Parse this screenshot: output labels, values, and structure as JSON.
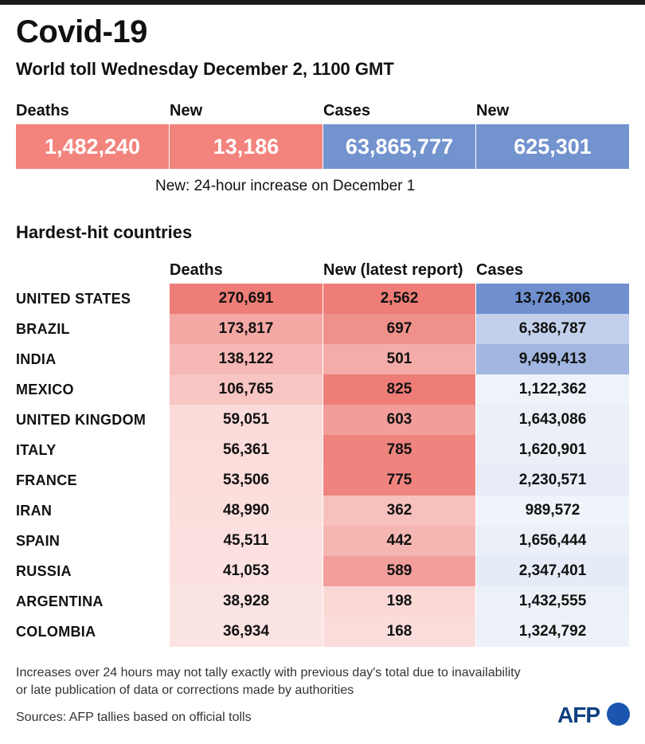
{
  "title": "Covid-19",
  "subtitle": "World toll Wednesday December 2, 1100 GMT",
  "summary": [
    {
      "label": "Deaths",
      "value": "1,482,240",
      "color": "#f2847d"
    },
    {
      "label": "New",
      "value": "13,186",
      "color": "#f2847d"
    },
    {
      "label": "Cases",
      "value": "63,865,777",
      "color": "#7393cf"
    },
    {
      "label": "New",
      "value": "625,301",
      "color": "#7393cf"
    }
  ],
  "note": "New: 24-hour increase on December 1",
  "section_title": "Hardest-hit countries",
  "colors": {
    "deaths": "#ee7d77",
    "new": "#ee7d77",
    "cases": "#6f8fcf"
  },
  "chart_data": {
    "type": "table",
    "title": "Hardest-hit countries",
    "columns": [
      "Deaths",
      "New (latest report)",
      "Cases"
    ],
    "rows": [
      {
        "country": "UNITED STATES",
        "deaths": "270,691",
        "new": "2,562",
        "cases": "13,726,306",
        "deaths_value": 270691,
        "new_value": 2562,
        "cases_value": 13726306
      },
      {
        "country": "BRAZIL",
        "deaths": "173,817",
        "new": "697",
        "cases": "6,386,787",
        "deaths_value": 173817,
        "new_value": 697,
        "cases_value": 6386787
      },
      {
        "country": "INDIA",
        "deaths": "138,122",
        "new": "501",
        "cases": "9,499,413",
        "deaths_value": 138122,
        "new_value": 501,
        "cases_value": 9499413
      },
      {
        "country": "MEXICO",
        "deaths": "106,765",
        "new": "825",
        "cases": "1,122,362",
        "deaths_value": 106765,
        "new_value": 825,
        "cases_value": 1122362
      },
      {
        "country": "UNITED KINGDOM",
        "deaths": "59,051",
        "new": "603",
        "cases": "1,643,086",
        "deaths_value": 59051,
        "new_value": 603,
        "cases_value": 1643086
      },
      {
        "country": "ITALY",
        "deaths": "56,361",
        "new": "785",
        "cases": "1,620,901",
        "deaths_value": 56361,
        "new_value": 785,
        "cases_value": 1620901
      },
      {
        "country": "FRANCE",
        "deaths": "53,506",
        "new": "775",
        "cases": "2,230,571",
        "deaths_value": 53506,
        "new_value": 775,
        "cases_value": 2230571
      },
      {
        "country": "IRAN",
        "deaths": "48,990",
        "new": "362",
        "cases": "989,572",
        "deaths_value": 48990,
        "new_value": 362,
        "cases_value": 989572
      },
      {
        "country": "SPAIN",
        "deaths": "45,511",
        "new": "442",
        "cases": "1,656,444",
        "deaths_value": 45511,
        "new_value": 442,
        "cases_value": 1656444
      },
      {
        "country": "RUSSIA",
        "deaths": "41,053",
        "new": "589",
        "cases": "2,347,401",
        "deaths_value": 41053,
        "new_value": 589,
        "cases_value": 2347401
      },
      {
        "country": "ARGENTINA",
        "deaths": "38,928",
        "new": "198",
        "cases": "1,432,555",
        "deaths_value": 38928,
        "new_value": 198,
        "cases_value": 1432555
      },
      {
        "country": "COLOMBIA",
        "deaths": "36,934",
        "new": "168",
        "cases": "1,324,792",
        "deaths_value": 36934,
        "new_value": 168,
        "cases_value": 1324792
      }
    ]
  },
  "footnote_line1": "Increases over 24 hours may not tally exactly with previous day's total due to inavailability",
  "footnote_line2": "or late publication of data or corrections made by authorities",
  "sources": "Sources: AFP tallies based on official tolls",
  "logo_text": "AFP"
}
